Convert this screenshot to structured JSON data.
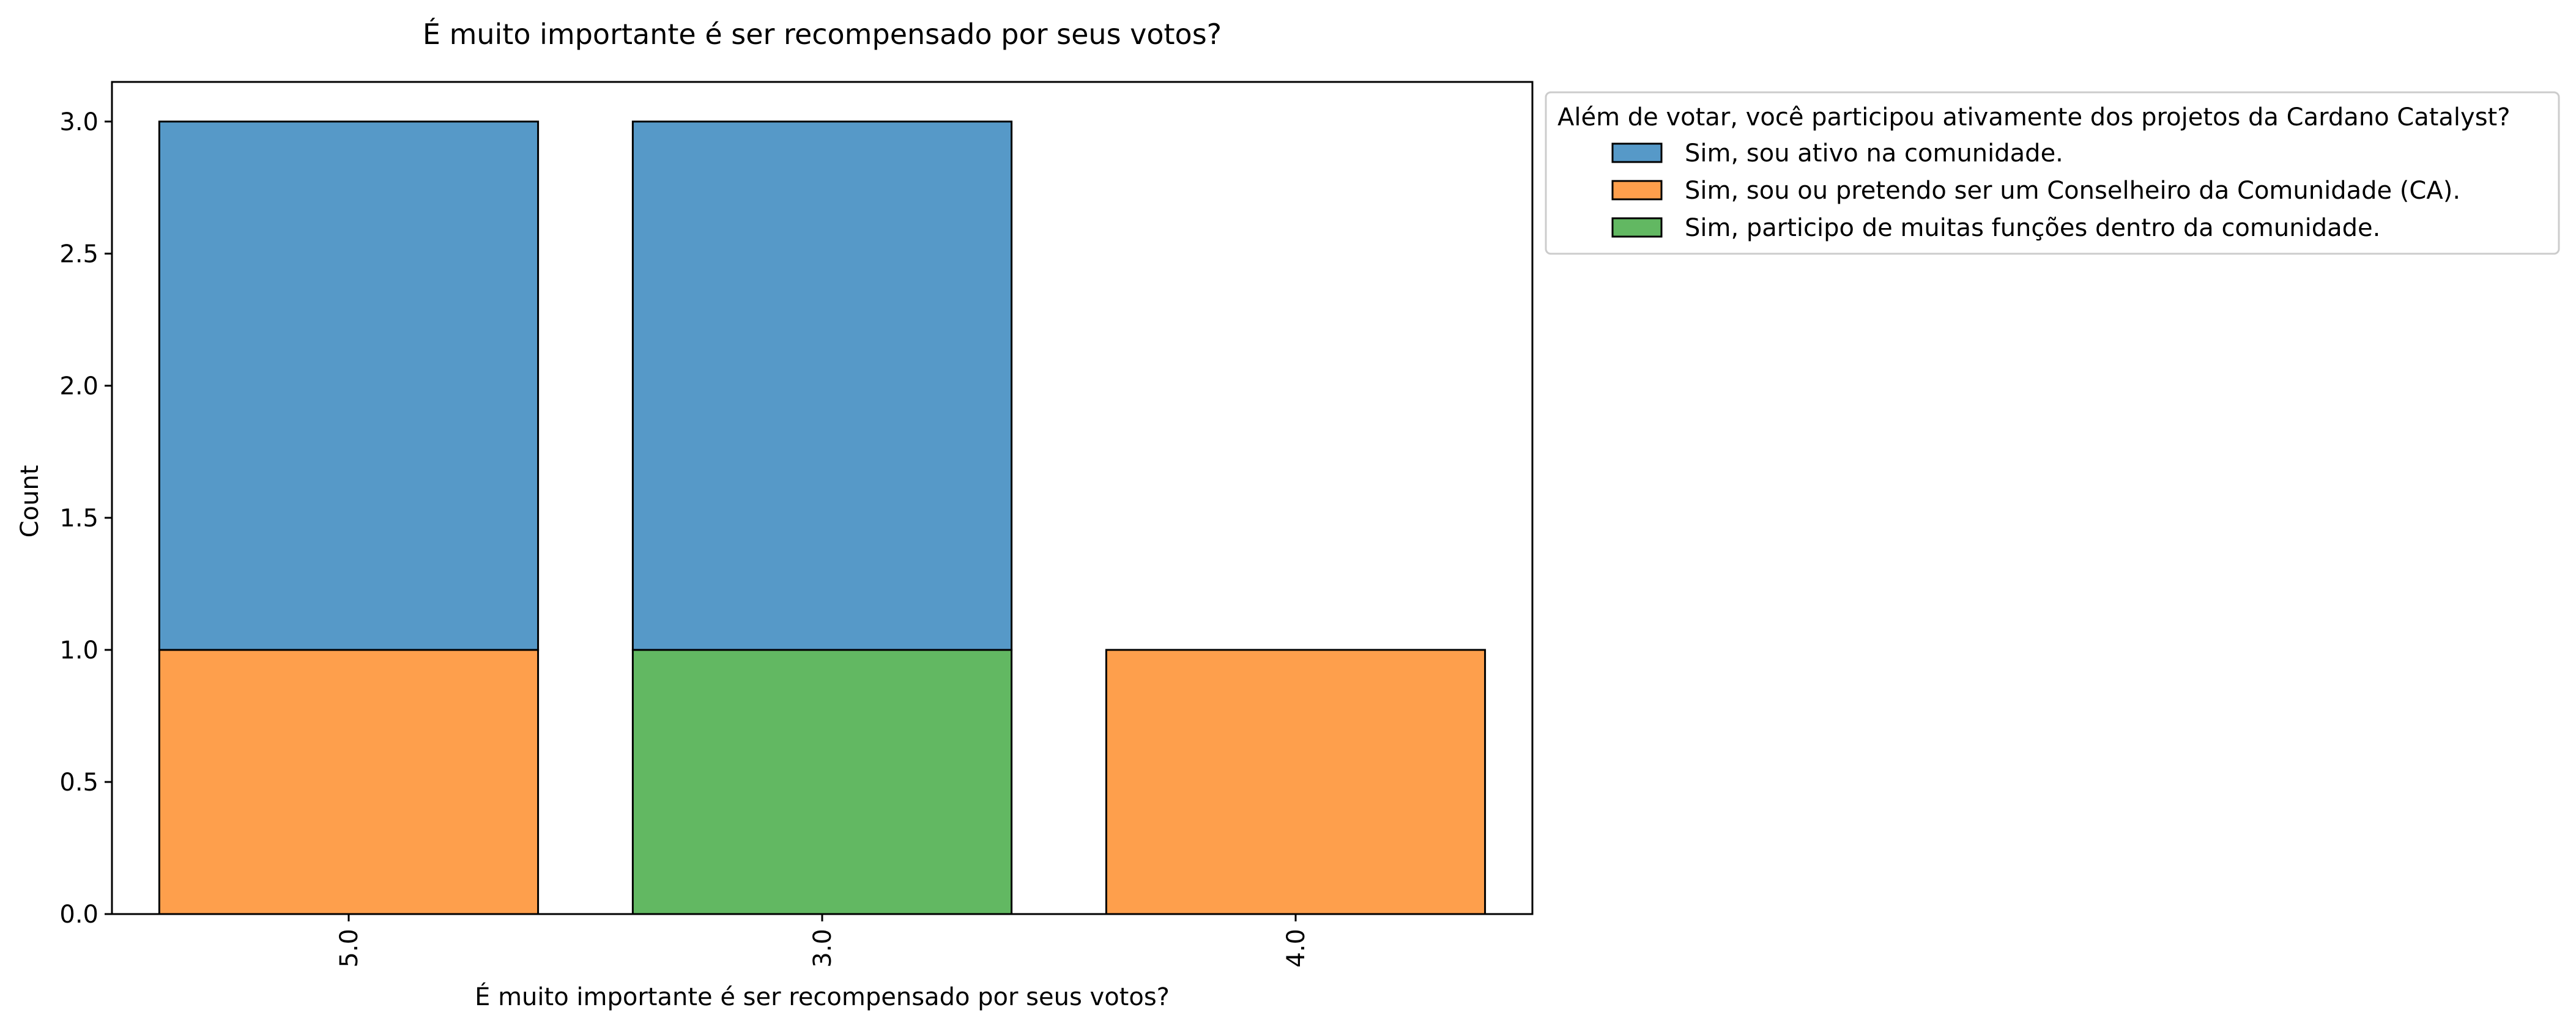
{
  "chart_data": {
    "type": "bar",
    "stacked": true,
    "title": "É muito importante é ser recompensado por seus votos?",
    "xlabel": "É muito importante é ser recompensado por seus votos?",
    "ylabel": "Count",
    "categories": [
      "5.0",
      "3.0",
      "4.0"
    ],
    "ylim": [
      0,
      3.15
    ],
    "yticks": [
      "0.0",
      "0.5",
      "1.0",
      "1.5",
      "2.0",
      "2.5",
      "3.0"
    ],
    "grid": false,
    "legend": {
      "title": "Além de votar, você participou ativamente dos projetos da Cardano Catalyst?",
      "placement": "outside-top-right"
    },
    "series": [
      {
        "name": "Sim, sou ativo na comunidade.",
        "color": "#5699c8",
        "values": [
          2,
          2,
          0
        ]
      },
      {
        "name": "Sim, sou ou pretendo ser um Conselheiro da Comunidade (CA).",
        "color": "#fe9f4c",
        "values": [
          1,
          0,
          1
        ]
      },
      {
        "name": "Sim, participo de muitas funções dentro da comunidade.",
        "color": "#62b862",
        "values": [
          0,
          1,
          0
        ]
      }
    ],
    "stack_order_bottom_to_top": [
      "Sim, sou ou pretendo ser um Conselheiro da Comunidade (CA).",
      "Sim, participo de muitas funções dentro da comunidade.",
      "Sim, sou ativo na comunidade."
    ]
  }
}
